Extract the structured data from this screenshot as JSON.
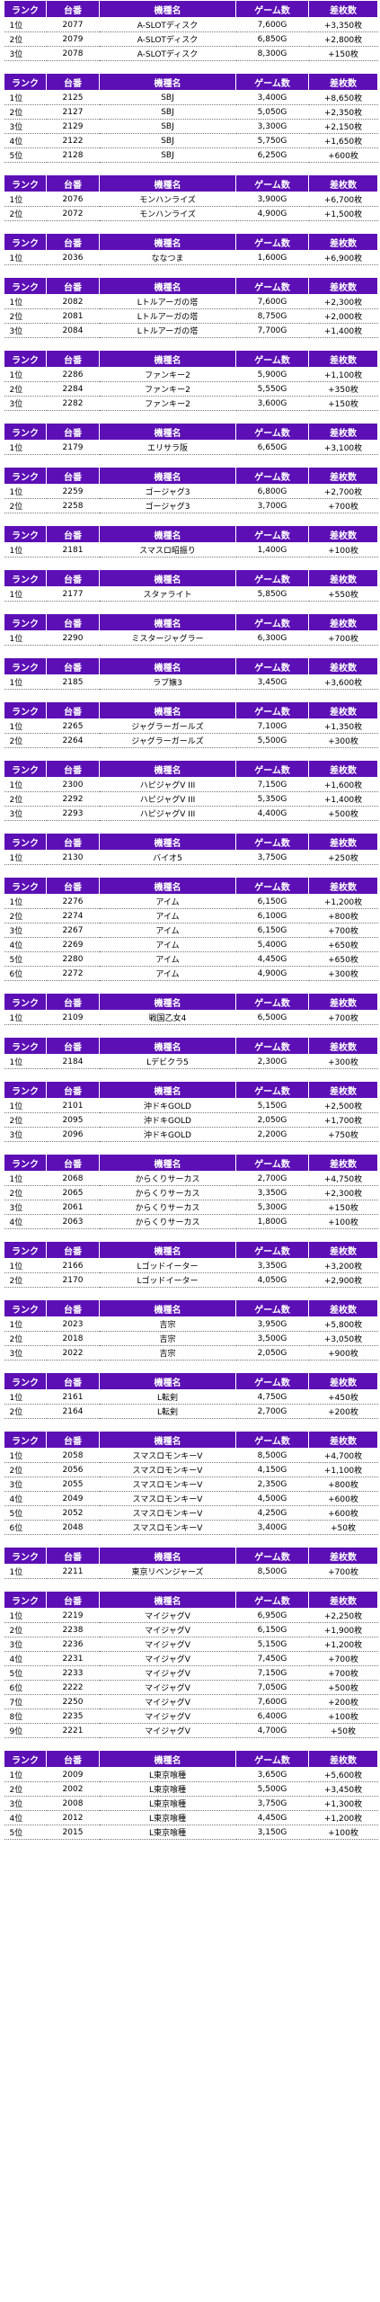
{
  "headers": [
    "ランク",
    "台番",
    "機種名",
    "ゲーム数",
    "差枚数"
  ],
  "sections": [
    {
      "rows": [
        [
          "1位",
          "2077",
          "A-SLOTディスク",
          "7,600G",
          "+3,350枚"
        ],
        [
          "2位",
          "2079",
          "A-SLOTディスク",
          "6,850G",
          "+2,800枚"
        ],
        [
          "3位",
          "2078",
          "A-SLOTディスク",
          "8,300G",
          "+150枚"
        ]
      ]
    },
    {
      "rows": [
        [
          "1位",
          "2125",
          "SBJ",
          "3,400G",
          "+8,650枚"
        ],
        [
          "2位",
          "2127",
          "SBJ",
          "5,050G",
          "+2,350枚"
        ],
        [
          "3位",
          "2129",
          "SBJ",
          "3,300G",
          "+2,150枚"
        ],
        [
          "4位",
          "2122",
          "SBJ",
          "5,750G",
          "+1,650枚"
        ],
        [
          "5位",
          "2128",
          "SBJ",
          "6,250G",
          "+600枚"
        ]
      ]
    },
    {
      "rows": [
        [
          "1位",
          "2076",
          "モンハンライズ",
          "3,900G",
          "+6,700枚"
        ],
        [
          "2位",
          "2072",
          "モンハンライズ",
          "4,900G",
          "+1,500枚"
        ]
      ]
    },
    {
      "rows": [
        [
          "1位",
          "2036",
          "ななつま",
          "1,600G",
          "+6,900枚"
        ]
      ]
    },
    {
      "rows": [
        [
          "1位",
          "2082",
          "Lトルアーガの塔",
          "7,600G",
          "+2,300枚"
        ],
        [
          "2位",
          "2081",
          "Lトルアーガの塔",
          "8,750G",
          "+2,000枚"
        ],
        [
          "3位",
          "2084",
          "Lトルアーガの塔",
          "7,700G",
          "+1,400枚"
        ]
      ]
    },
    {
      "rows": [
        [
          "1位",
          "2286",
          "ファンキー2",
          "5,900G",
          "+1,100枚"
        ],
        [
          "2位",
          "2284",
          "ファンキー2",
          "5,550G",
          "+350枚"
        ],
        [
          "3位",
          "2282",
          "ファンキー2",
          "3,600G",
          "+150枚"
        ]
      ]
    },
    {
      "rows": [
        [
          "1位",
          "2179",
          "エリサラ阪",
          "6,650G",
          "+3,100枚"
        ]
      ]
    },
    {
      "rows": [
        [
          "1位",
          "2259",
          "ゴージャグ3",
          "6,800G",
          "+2,700枚"
        ],
        [
          "2位",
          "2258",
          "ゴージャグ3",
          "3,700G",
          "+700枚"
        ]
      ]
    },
    {
      "rows": [
        [
          "1位",
          "2181",
          "スマスロ昭振り",
          "1,400G",
          "+100枚"
        ]
      ]
    },
    {
      "rows": [
        [
          "1位",
          "2177",
          "スタァライト",
          "5,850G",
          "+550枚"
        ]
      ]
    },
    {
      "rows": [
        [
          "1位",
          "2290",
          "ミスタージャグラー",
          "6,300G",
          "+700枚"
        ]
      ]
    },
    {
      "rows": [
        [
          "1位",
          "2185",
          "ラブ嬢3",
          "3,450G",
          "+3,600枚"
        ]
      ]
    },
    {
      "rows": [
        [
          "1位",
          "2265",
          "ジャグラーガールズ",
          "7,100G",
          "+1,350枚"
        ],
        [
          "2位",
          "2264",
          "ジャグラーガールズ",
          "5,500G",
          "+300枚"
        ]
      ]
    },
    {
      "rows": [
        [
          "1位",
          "2300",
          "ハピジャグV III",
          "7,150G",
          "+1,600枚"
        ],
        [
          "2位",
          "2292",
          "ハピジャグV III",
          "5,350G",
          "+1,400枚"
        ],
        [
          "3位",
          "2293",
          "ハピジャグV III",
          "4,400G",
          "+500枚"
        ]
      ]
    },
    {
      "rows": [
        [
          "1位",
          "2130",
          "バイオ5",
          "3,750G",
          "+250枚"
        ]
      ]
    },
    {
      "rows": [
        [
          "1位",
          "2276",
          "アイム",
          "6,150G",
          "+1,200枚"
        ],
        [
          "2位",
          "2274",
          "アイム",
          "6,100G",
          "+800枚"
        ],
        [
          "3位",
          "2267",
          "アイム",
          "6,150G",
          "+700枚"
        ],
        [
          "4位",
          "2269",
          "アイム",
          "5,400G",
          "+650枚"
        ],
        [
          "5位",
          "2280",
          "アイム",
          "4,450G",
          "+650枚"
        ],
        [
          "6位",
          "2272",
          "アイム",
          "4,900G",
          "+300枚"
        ]
      ]
    },
    {
      "rows": [
        [
          "1位",
          "2109",
          "戦国乙女4",
          "6,500G",
          "+700枚"
        ]
      ]
    },
    {
      "rows": [
        [
          "1位",
          "2184",
          "Lデビクラ5",
          "2,300G",
          "+300枚"
        ]
      ]
    },
    {
      "rows": [
        [
          "1位",
          "2101",
          "沖ドキGOLD",
          "5,150G",
          "+2,500枚"
        ],
        [
          "2位",
          "2095",
          "沖ドキGOLD",
          "2,050G",
          "+1,700枚"
        ],
        [
          "3位",
          "2096",
          "沖ドキGOLD",
          "2,200G",
          "+750枚"
        ]
      ]
    },
    {
      "rows": [
        [
          "1位",
          "2068",
          "からくりサーカス",
          "2,700G",
          "+4,750枚"
        ],
        [
          "2位",
          "2065",
          "からくりサーカス",
          "3,350G",
          "+2,300枚"
        ],
        [
          "3位",
          "2061",
          "からくりサーカス",
          "5,300G",
          "+150枚"
        ],
        [
          "4位",
          "2063",
          "からくりサーカス",
          "1,800G",
          "+100枚"
        ]
      ]
    },
    {
      "rows": [
        [
          "1位",
          "2166",
          "Lゴッドイーター",
          "3,350G",
          "+3,200枚"
        ],
        [
          "2位",
          "2170",
          "Lゴッドイーター",
          "4,050G",
          "+2,900枚"
        ]
      ]
    },
    {
      "rows": [
        [
          "1位",
          "2023",
          "吉宗",
          "3,950G",
          "+5,800枚"
        ],
        [
          "2位",
          "2018",
          "吉宗",
          "3,500G",
          "+3,050枚"
        ],
        [
          "3位",
          "2022",
          "吉宗",
          "2,050G",
          "+900枚"
        ]
      ]
    },
    {
      "rows": [
        [
          "1位",
          "2161",
          "L転剣",
          "4,750G",
          "+450枚"
        ],
        [
          "2位",
          "2164",
          "L転剣",
          "2,700G",
          "+200枚"
        ]
      ]
    },
    {
      "rows": [
        [
          "1位",
          "2058",
          "スマスロモンキーV",
          "8,500G",
          "+4,700枚"
        ],
        [
          "2位",
          "2056",
          "スマスロモンキーV",
          "4,150G",
          "+1,100枚"
        ],
        [
          "3位",
          "2055",
          "スマスロモンキーV",
          "2,350G",
          "+800枚"
        ],
        [
          "4位",
          "2049",
          "スマスロモンキーV",
          "4,500G",
          "+600枚"
        ],
        [
          "5位",
          "2052",
          "スマスロモンキーV",
          "4,250G",
          "+600枚"
        ],
        [
          "6位",
          "2048",
          "スマスロモンキーV",
          "3,400G",
          "+50枚"
        ]
      ]
    },
    {
      "rows": [
        [
          "1位",
          "2211",
          "東京リベンジャーズ",
          "8,500G",
          "+700枚"
        ]
      ]
    },
    {
      "rows": [
        [
          "1位",
          "2219",
          "マイジャグV",
          "6,950G",
          "+2,250枚"
        ],
        [
          "2位",
          "2238",
          "マイジャグV",
          "6,150G",
          "+1,900枚"
        ],
        [
          "3位",
          "2236",
          "マイジャグV",
          "5,150G",
          "+1,200枚"
        ],
        [
          "4位",
          "2231",
          "マイジャグV",
          "7,450G",
          "+700枚"
        ],
        [
          "5位",
          "2233",
          "マイジャグV",
          "7,150G",
          "+700枚"
        ],
        [
          "6位",
          "2222",
          "マイジャグV",
          "7,050G",
          "+500枚"
        ],
        [
          "7位",
          "2250",
          "マイジャグV",
          "7,600G",
          "+200枚"
        ],
        [
          "8位",
          "2235",
          "マイジャグV",
          "6,400G",
          "+100枚"
        ],
        [
          "9位",
          "2221",
          "マイジャグV",
          "4,700G",
          "+50枚"
        ]
      ]
    },
    {
      "rows": [
        [
          "1位",
          "2009",
          "L東京喰種",
          "3,650G",
          "+5,600枚"
        ],
        [
          "2位",
          "2002",
          "L東京喰種",
          "5,500G",
          "+3,450枚"
        ],
        [
          "3位",
          "2008",
          "L東京喰種",
          "3,750G",
          "+1,300枚"
        ],
        [
          "4位",
          "2012",
          "L東京喰種",
          "4,450G",
          "+1,200枚"
        ],
        [
          "5位",
          "2015",
          "L東京喰種",
          "3,150G",
          "+100枚"
        ]
      ]
    }
  ]
}
